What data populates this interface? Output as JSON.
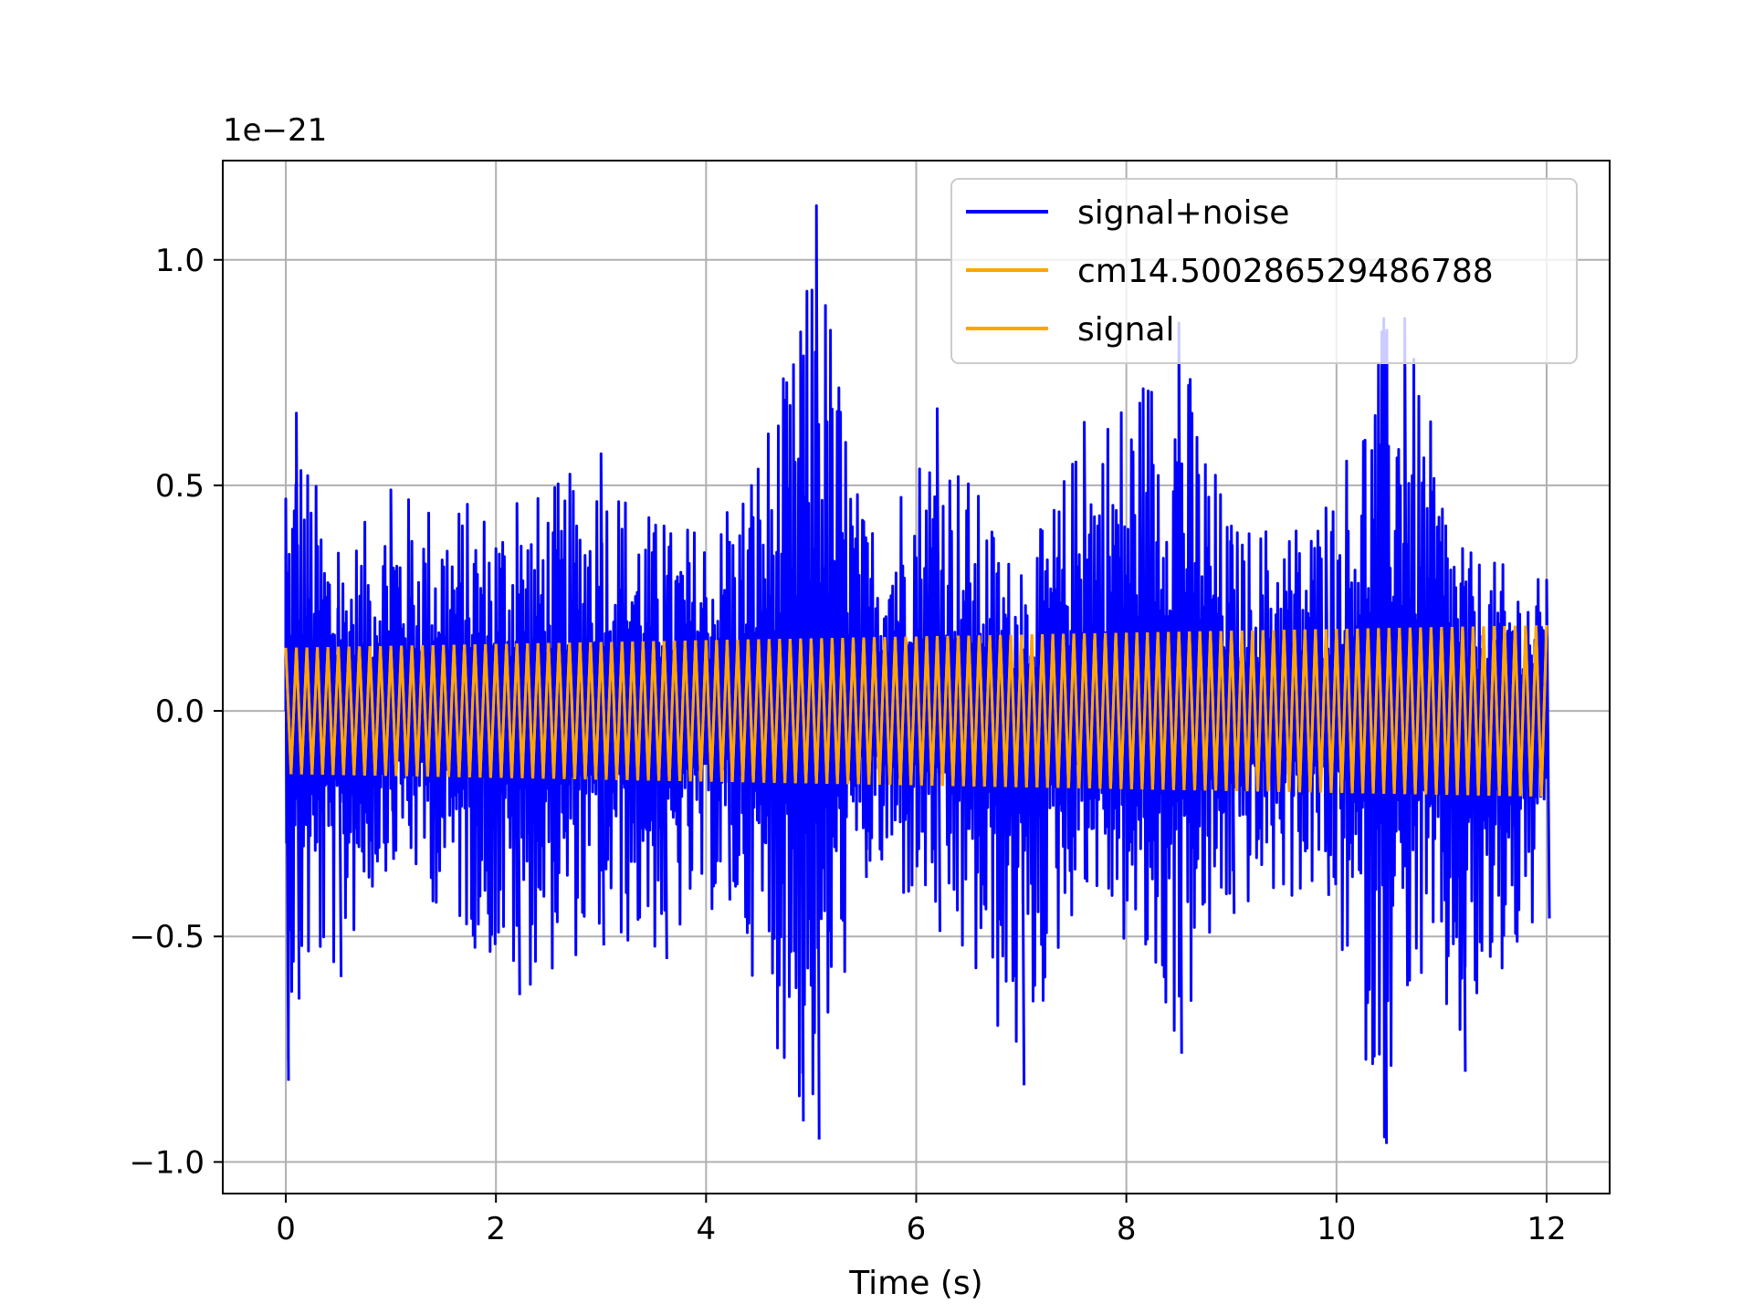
{
  "chart_data": {
    "type": "line",
    "title": "",
    "xlabel": "Time (s)",
    "ylabel": "",
    "y_offset_label": "1e−21",
    "xlim": [
      -0.6,
      12.6
    ],
    "ylim": [
      -1.07,
      1.22
    ],
    "x_ticks": [
      0,
      2,
      4,
      6,
      8,
      10,
      12
    ],
    "x_tick_labels": [
      "0",
      "2",
      "4",
      "6",
      "8",
      "10",
      "12"
    ],
    "y_ticks": [
      -1.0,
      -0.5,
      0.0,
      0.5,
      1.0
    ],
    "y_tick_labels": [
      "−1.0",
      "−0.5",
      "0.0",
      "0.5",
      "1.0"
    ],
    "grid": true,
    "legend_position": "top-right",
    "series": [
      {
        "name": "signal+noise",
        "color": "#0000ff",
        "x_range": [
          0,
          12
        ],
        "envelope": [
          {
            "x": 0.0,
            "max": 0.47,
            "min": -0.82
          },
          {
            "x": 0.1,
            "max": 0.66,
            "min": -0.64
          },
          {
            "x": 0.5,
            "max": 0.35,
            "min": -0.59
          },
          {
            "x": 1.0,
            "max": 0.49,
            "min": -0.33
          },
          {
            "x": 2.2,
            "max": 0.46,
            "min": -0.63
          },
          {
            "x": 3.0,
            "max": 0.57,
            "min": -0.52
          },
          {
            "x": 3.6,
            "max": 0.41,
            "min": -0.55
          },
          {
            "x": 4.2,
            "max": 0.44,
            "min": -0.42
          },
          {
            "x": 4.9,
            "max": 0.84,
            "min": -0.91
          },
          {
            "x": 5.05,
            "max": 1.12,
            "min": -0.95
          },
          {
            "x": 5.5,
            "max": 0.42,
            "min": -0.37
          },
          {
            "x": 6.2,
            "max": 0.67,
            "min": -0.49
          },
          {
            "x": 7.0,
            "max": 0.3,
            "min": -0.83
          },
          {
            "x": 7.6,
            "max": 0.64,
            "min": -0.38
          },
          {
            "x": 8.5,
            "max": 0.86,
            "min": -0.76
          },
          {
            "x": 9.0,
            "max": 0.41,
            "min": -0.45
          },
          {
            "x": 9.9,
            "max": 0.45,
            "min": -0.41
          },
          {
            "x": 10.45,
            "max": 0.87,
            "min": -0.96
          },
          {
            "x": 10.65,
            "max": 0.87,
            "min": -0.61
          },
          {
            "x": 11.2,
            "max": 0.36,
            "min": -0.8
          },
          {
            "x": 12.0,
            "max": 0.29,
            "min": -0.46
          }
        ],
        "baseline": 0.0
      },
      {
        "name": "cm14.500286529486788",
        "color": "#ffa500",
        "x_range": [
          0,
          12
        ],
        "amplitude_start": 0.14,
        "amplitude_end": 0.19,
        "cycles": 120
      },
      {
        "name": "signal",
        "color": "#ffa500",
        "x_range": [
          0,
          12
        ],
        "amplitude_start": 0.14,
        "amplitude_end": 0.19,
        "cycles": 120
      }
    ]
  }
}
